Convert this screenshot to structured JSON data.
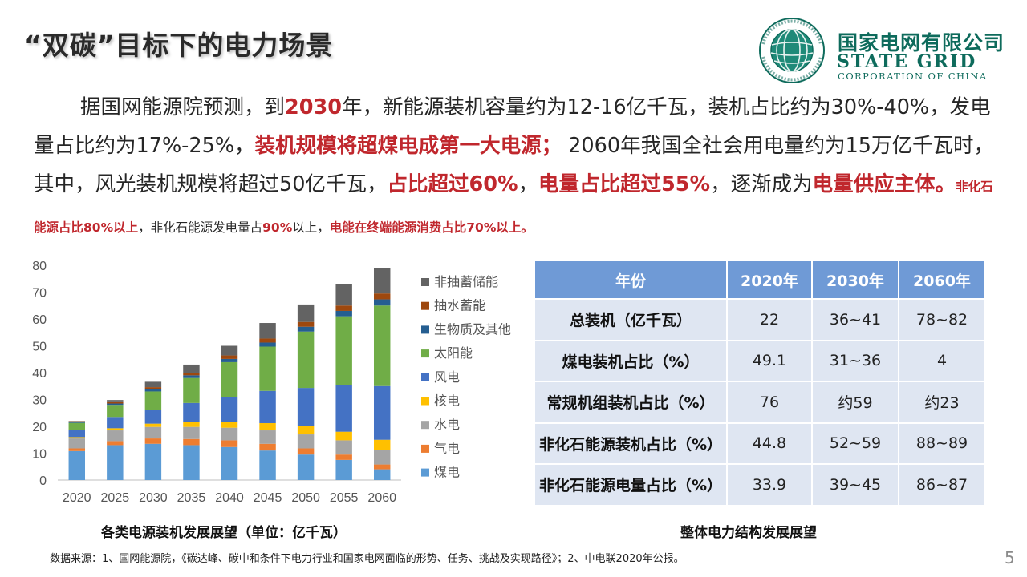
{
  "title": "“双碳”目标下的电力场景",
  "logo": {
    "cn": "国家电网有限公司",
    "en": "STATE GRID",
    "en2": "CORPORATION OF CHINA",
    "ring_text": "国家电网公司 STATE GRID CORPORATION OF CHINA",
    "color": "#0e6b5c"
  },
  "paragraph": {
    "s1": "据国网能源院预测，到",
    "r1": "2030",
    "s2": "年，新能源装机容量约为12-16亿千瓦，装机占比约为30%-40%，发电量占比约为17%-25%，",
    "r2": "装机规模将超煤电成第一大电源；",
    "s3": " 2060年我国全社会用电量约为15万亿千瓦时，其中，风光装机规模将超过50亿千瓦，",
    "r3": "占比超过60%",
    "s4": "，",
    "r4": "电量占比超过55%",
    "s5": "，逐渐成为",
    "r5": "电量供应主体。",
    "r6": "非化石能源占比80%以上",
    "s6": "，非化石能源发电量占",
    "r7": "90%",
    "s7": "以上，",
    "r8": "电能在终端能源消费占比70%以上。"
  },
  "chart_caption": "各类电源装机发展展望（单位：亿千瓦）",
  "table_caption": "整体电力结构发展展望",
  "source": "数据来源：1、国网能源院，《碳达峰、碳中和条件下电力行业和国家电网面临的形势、任务、挑战及实现路径》；2、中电联2020年公报。",
  "page_number": "5",
  "table": {
    "headers": [
      "年份",
      "2020年",
      "2030年",
      "2060年"
    ],
    "rows": [
      [
        "总装机（亿千瓦）",
        "22",
        "36~41",
        "78~82"
      ],
      [
        "煤电装机占比（%）",
        "49.1",
        "31~36",
        "4"
      ],
      [
        "常规机组装机占比（%）",
        "76",
        "约59",
        "约23"
      ],
      [
        "非化石能源装机占比（%）",
        "44.8",
        "52~59",
        "88~89"
      ],
      [
        "非化石能源电量占比（%）",
        "33.9",
        "39~45",
        "86~87"
      ]
    ],
    "header_color": "#6f9ad6",
    "cell_color": "#dfe6f2"
  },
  "chart_data": {
    "type": "bar",
    "stacked": true,
    "categories": [
      "2020",
      "2025",
      "2030",
      "2035",
      "2040",
      "2045",
      "2050",
      "2055",
      "2060"
    ],
    "ylim": [
      0,
      80
    ],
    "yticks": [
      0,
      10,
      20,
      30,
      40,
      50,
      60,
      70,
      80
    ],
    "grid": false,
    "legend_position": "right",
    "series": [
      {
        "name": "煤电",
        "color": "#5b9bd5",
        "values": [
          10.8,
          13.0,
          13.5,
          13.0,
          12.3,
          11.0,
          9.5,
          7.5,
          4.0
        ]
      },
      {
        "name": "气电",
        "color": "#ed7d31",
        "values": [
          1.0,
          1.5,
          2.0,
          2.3,
          2.5,
          2.5,
          2.3,
          2.0,
          1.8
        ]
      },
      {
        "name": "水电",
        "color": "#a5a5a5",
        "values": [
          3.7,
          4.0,
          4.3,
          4.5,
          4.7,
          5.0,
          5.2,
          5.3,
          5.5
        ]
      },
      {
        "name": "核电",
        "color": "#ffc000",
        "values": [
          0.5,
          0.8,
          1.2,
          1.7,
          2.2,
          2.7,
          3.0,
          3.2,
          3.7
        ]
      },
      {
        "name": "风电",
        "color": "#4472c4",
        "values": [
          2.8,
          4.2,
          5.2,
          7.2,
          9.3,
          12.0,
          14.3,
          17.5,
          20.0
        ]
      },
      {
        "name": "太阳能",
        "color": "#70ad47",
        "values": [
          2.5,
          4.5,
          6.8,
          9.3,
          12.9,
          16.5,
          21.0,
          25.5,
          30.0
        ]
      },
      {
        "name": "生物质及其他",
        "color": "#255e91",
        "values": [
          0.3,
          0.5,
          0.8,
          1.0,
          1.2,
          1.5,
          1.8,
          2.0,
          2.3
        ]
      },
      {
        "name": "抽水蓄能",
        "color": "#9e480e",
        "values": [
          0.3,
          0.5,
          0.8,
          1.0,
          1.3,
          1.5,
          1.8,
          2.0,
          2.2
        ]
      },
      {
        "name": "非抽蓄储能",
        "color": "#636363",
        "values": [
          0.1,
          0.8,
          2.0,
          3.0,
          3.6,
          5.8,
          6.5,
          8.0,
          9.5
        ]
      }
    ],
    "legend_order": [
      "非抽蓄储能",
      "抽水蓄能",
      "生物质及其他",
      "太阳能",
      "风电",
      "核电",
      "水电",
      "气电",
      "煤电"
    ]
  }
}
